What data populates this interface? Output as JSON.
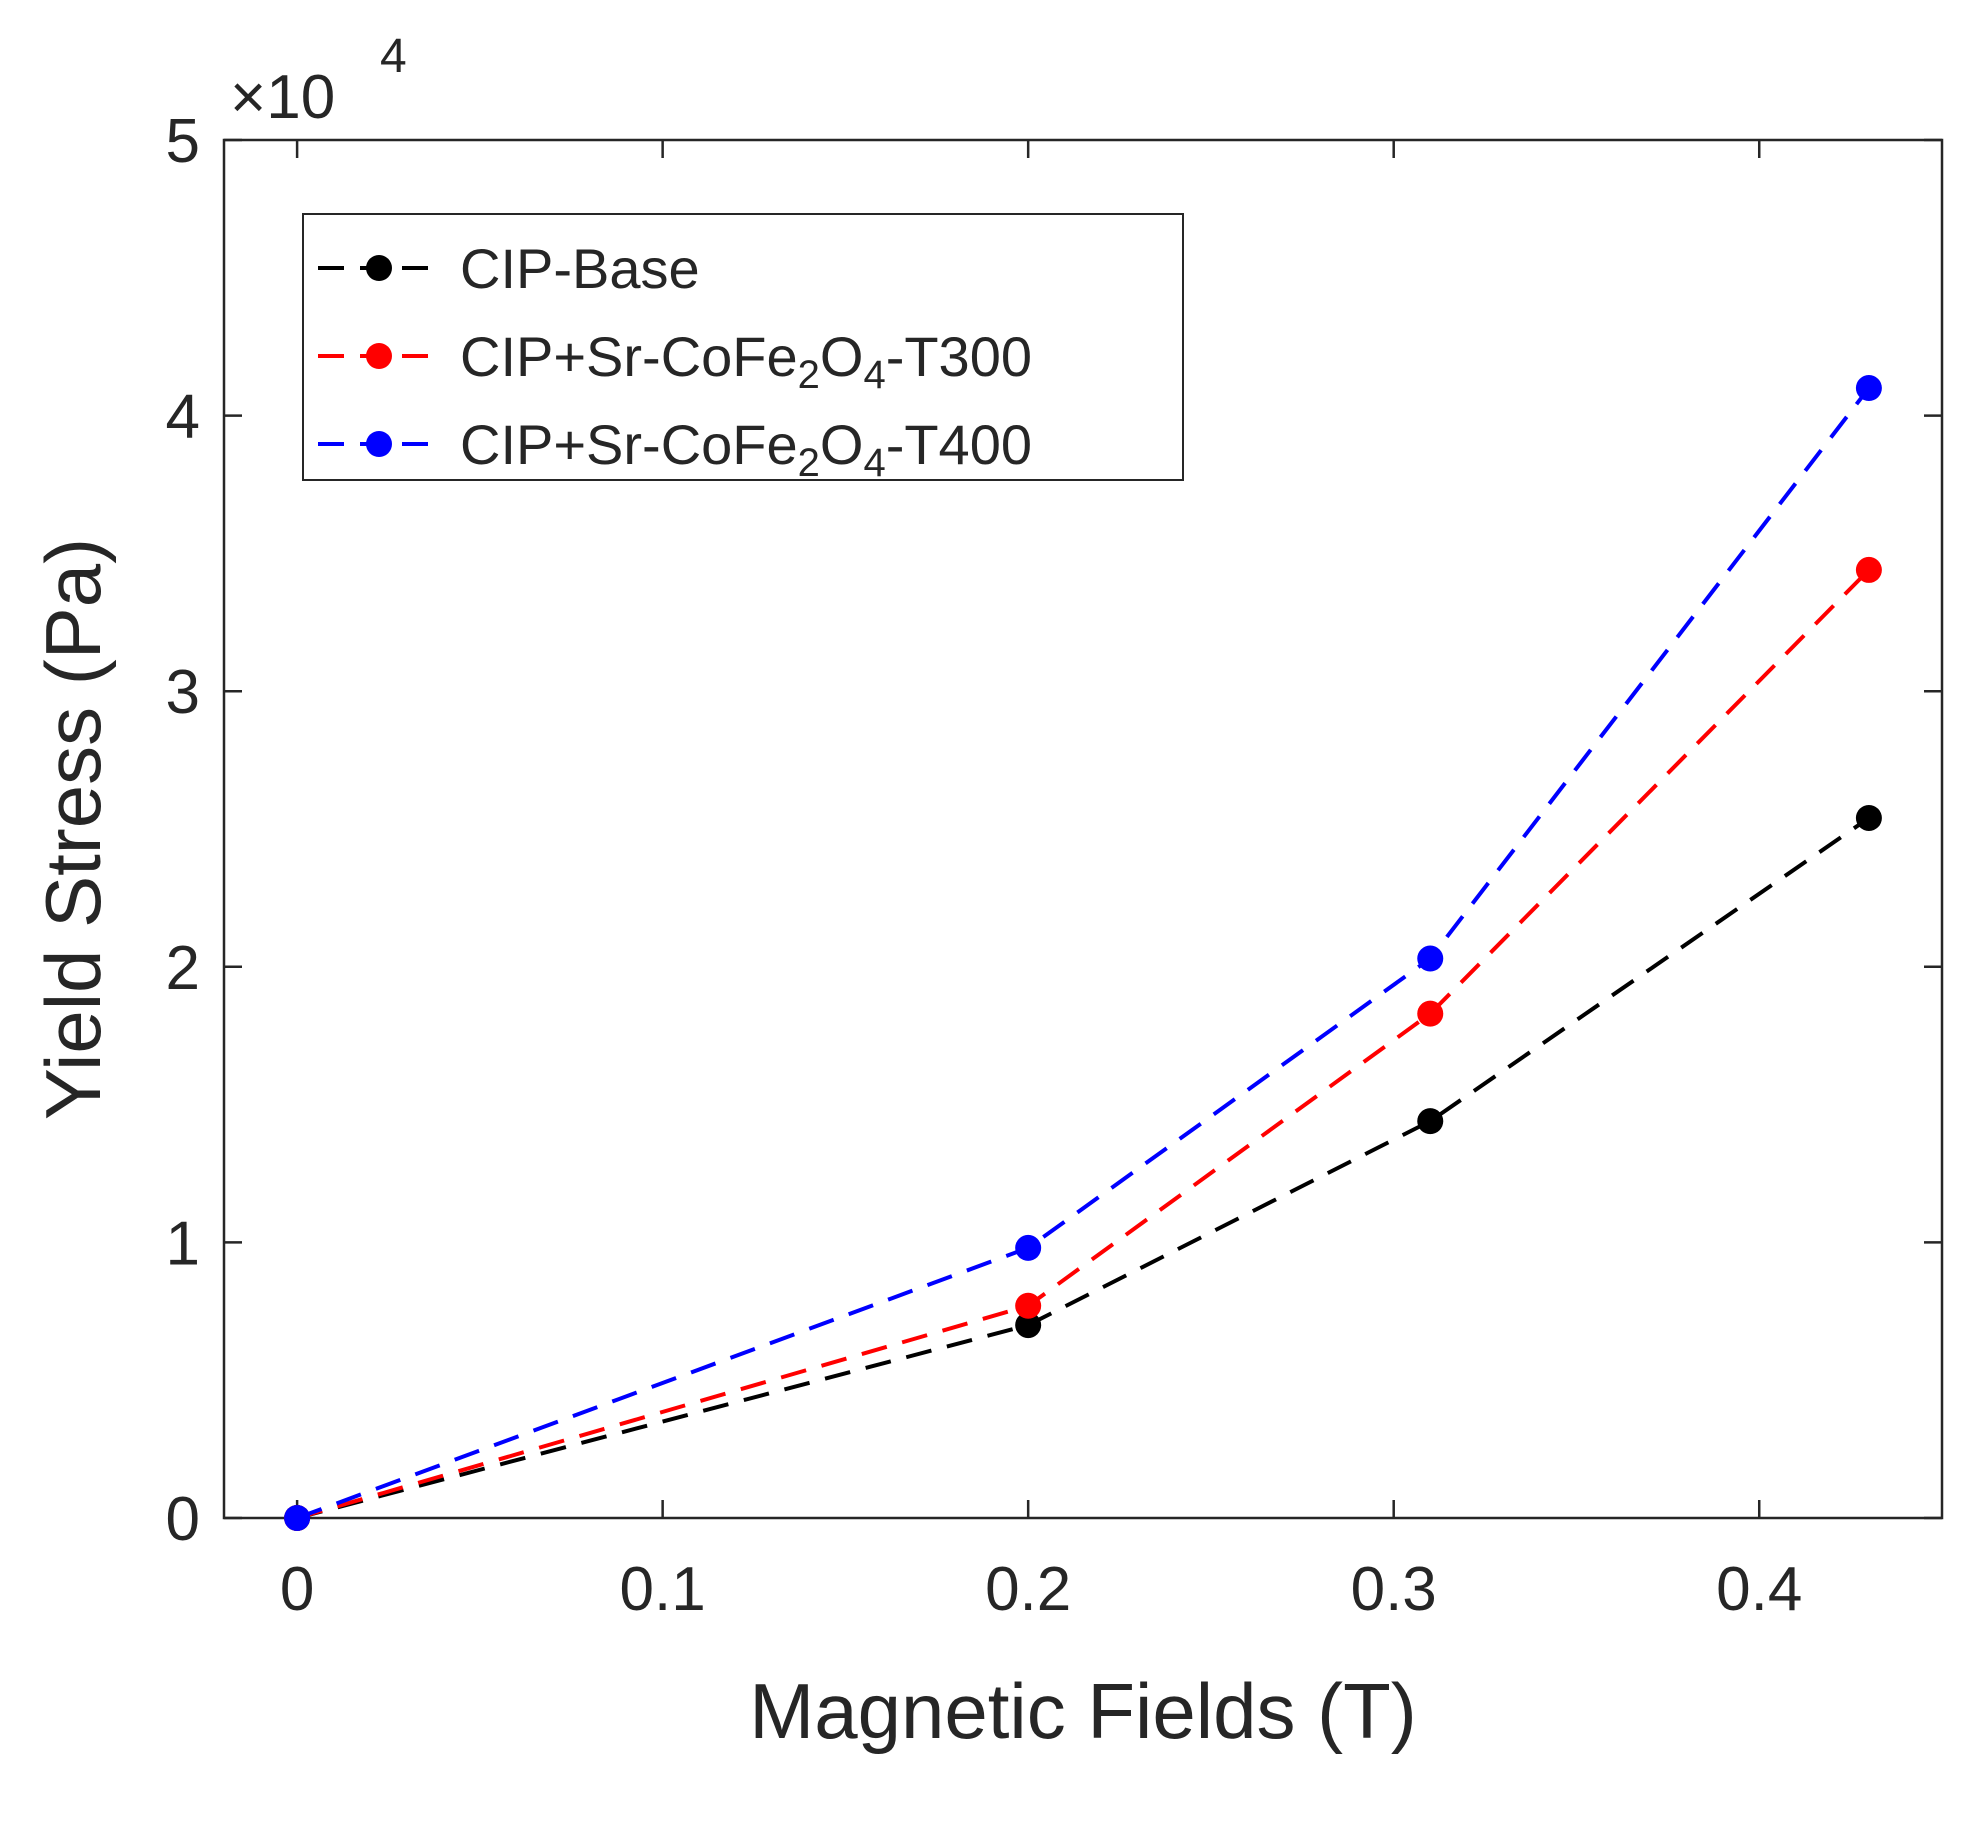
{
  "chart_data": {
    "type": "line",
    "xlabel": "Magnetic Fields (T)",
    "ylabel": "Yield Stress (Pa)",
    "y_multiplier": "×10",
    "y_multiplier_exponent": "4",
    "xlim": [
      -0.02,
      0.45
    ],
    "ylim": [
      0,
      5
    ],
    "x_ticks": [
      {
        "value": 0,
        "label": "0"
      },
      {
        "value": 0.1,
        "label": "0.1"
      },
      {
        "value": 0.2,
        "label": "0.2"
      },
      {
        "value": 0.3,
        "label": "0.3"
      },
      {
        "value": 0.4,
        "label": "0.4"
      }
    ],
    "y_ticks": [
      {
        "value": 0,
        "label": "0"
      },
      {
        "value": 1,
        "label": "1"
      },
      {
        "value": 2,
        "label": "2"
      },
      {
        "value": 3,
        "label": "3"
      },
      {
        "value": 4,
        "label": "4"
      },
      {
        "value": 5,
        "label": "5"
      }
    ],
    "grid": false,
    "legend_position": "top-left",
    "x": [
      0,
      0.2,
      0.31,
      0.43
    ],
    "series": [
      {
        "name_parts": [
          "CIP-Base"
        ],
        "color": "#000000",
        "values": [
          0,
          0.7,
          1.44,
          2.54
        ]
      },
      {
        "name_parts": [
          "CIP+Sr-CoFe",
          "2",
          "O",
          "4",
          "-T300"
        ],
        "color": "#ff0000",
        "values": [
          0,
          0.77,
          1.83,
          3.44
        ]
      },
      {
        "name_parts": [
          "CIP+Sr-CoFe",
          "2",
          "O",
          "4",
          "-T400"
        ],
        "color": "#0000ff",
        "values": [
          0,
          0.98,
          2.03,
          4.1
        ]
      }
    ]
  }
}
